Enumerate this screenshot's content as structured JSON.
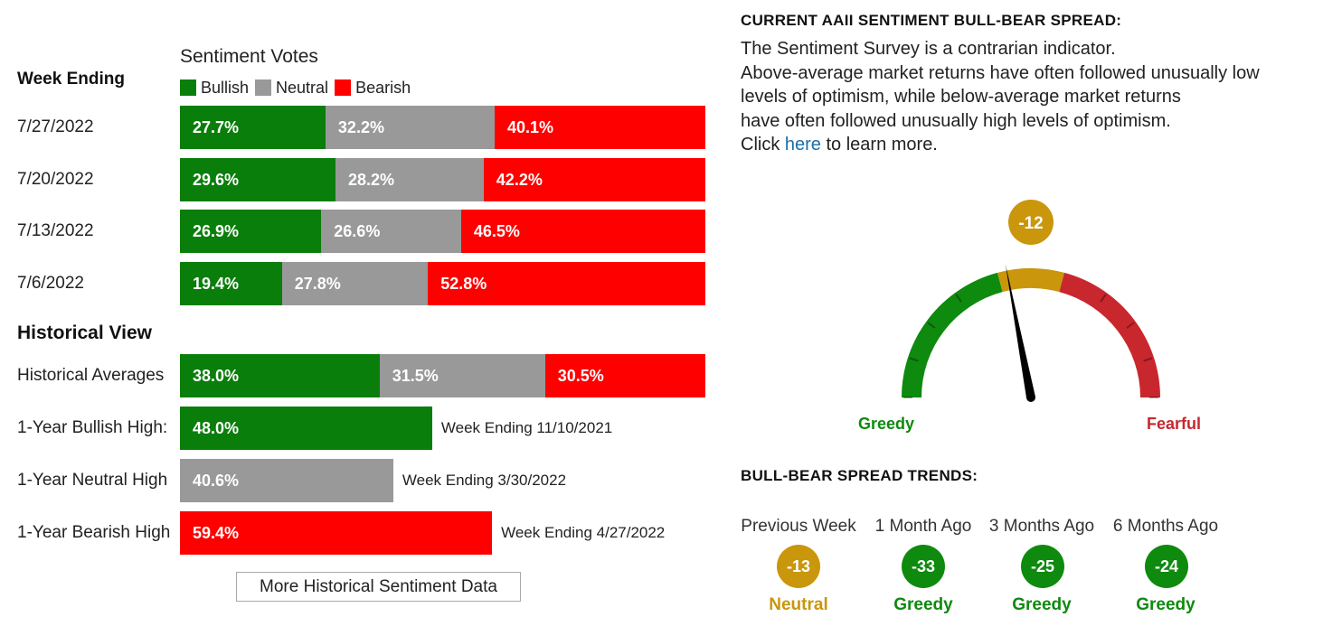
{
  "votes": {
    "title": "Sentiment Votes",
    "week_ending_header": "Week Ending",
    "legend": [
      {
        "label": "Bullish",
        "color": "#0a7e0a"
      },
      {
        "label": "Neutral",
        "color": "#999999"
      },
      {
        "label": "Bearish",
        "color": "#ff0000"
      }
    ]
  },
  "historical": {
    "title": "Historical View",
    "more_button": "More Historical Sentiment Data"
  },
  "chart_data": [
    {
      "type": "bar",
      "stacked": true,
      "title": "Sentiment Votes",
      "categories": [
        "7/27/2022",
        "7/20/2022",
        "7/13/2022",
        "7/6/2022"
      ],
      "series": [
        {
          "name": "Bullish",
          "values": [
            27.7,
            29.6,
            26.9,
            19.4
          ],
          "labels": [
            "27.7%",
            "29.6%",
            "26.9%",
            "19.4%"
          ]
        },
        {
          "name": "Neutral",
          "values": [
            32.2,
            28.2,
            26.6,
            27.8
          ],
          "labels": [
            "32.2%",
            "28.2%",
            "26.6%",
            "27.8%"
          ]
        },
        {
          "name": "Bearish",
          "values": [
            40.1,
            42.2,
            46.5,
            52.8
          ],
          "labels": [
            "40.1%",
            "42.2%",
            "46.5%",
            "52.8%"
          ]
        }
      ]
    },
    {
      "type": "bar",
      "stacked": true,
      "title": "Historical View",
      "categories": [
        "Historical Averages"
      ],
      "series": [
        {
          "name": "Bullish",
          "values": [
            38.0
          ],
          "labels": [
            "38.0%"
          ]
        },
        {
          "name": "Neutral",
          "values": [
            31.5
          ],
          "labels": [
            "31.5%"
          ]
        },
        {
          "name": "Bearish",
          "values": [
            30.5
          ],
          "labels": [
            "30.5%"
          ]
        }
      ]
    },
    {
      "type": "bar",
      "categories": [
        "1-Year Bullish High:",
        "1-Year Neutral High",
        "1-Year Bearish High"
      ],
      "values": [
        48.0,
        40.6,
        59.4
      ],
      "labels": [
        "48.0%",
        "40.6%",
        "59.4%"
      ],
      "notes": [
        "Week Ending 11/10/2021",
        "Week Ending 3/30/2022",
        "Week Ending 4/27/2022"
      ],
      "colors": [
        "#0a7e0a",
        "#999999",
        "#ff0000"
      ]
    }
  ],
  "spread": {
    "title": "CURRENT AAII SENTIMENT BULL-BEAR SPREAD:",
    "desc_line1": "The Sentiment Survey is a contrarian indicator.",
    "desc_line2": "Above-average market returns have often followed unusually low levels of optimism, while below-average market returns",
    "desc_line3": "have often followed unusually high levels of optimism.",
    "desc_click": "Click ",
    "desc_link": "here",
    "desc_after": " to learn more.",
    "gauge": {
      "value": -12,
      "value_label": "-12",
      "left_label": "Greedy",
      "right_label": "Fearful",
      "colors": {
        "greedy": "#0e8a0e",
        "neutral": "#c9960c",
        "fearful": "#c8272d"
      }
    }
  },
  "trends": {
    "title": "BULL-BEAR SPREAD TRENDS:",
    "items": [
      {
        "period": "Previous Week",
        "value": "-13",
        "status": "Neutral",
        "color": "#c9960c"
      },
      {
        "period": "1 Month Ago",
        "value": "-33",
        "status": "Greedy",
        "color": "#0e8a0e"
      },
      {
        "period": "3 Months Ago",
        "value": "-25",
        "status": "Greedy",
        "color": "#0e8a0e"
      },
      {
        "period": "6 Months Ago",
        "value": "-24",
        "status": "Greedy",
        "color": "#0e8a0e"
      }
    ]
  }
}
